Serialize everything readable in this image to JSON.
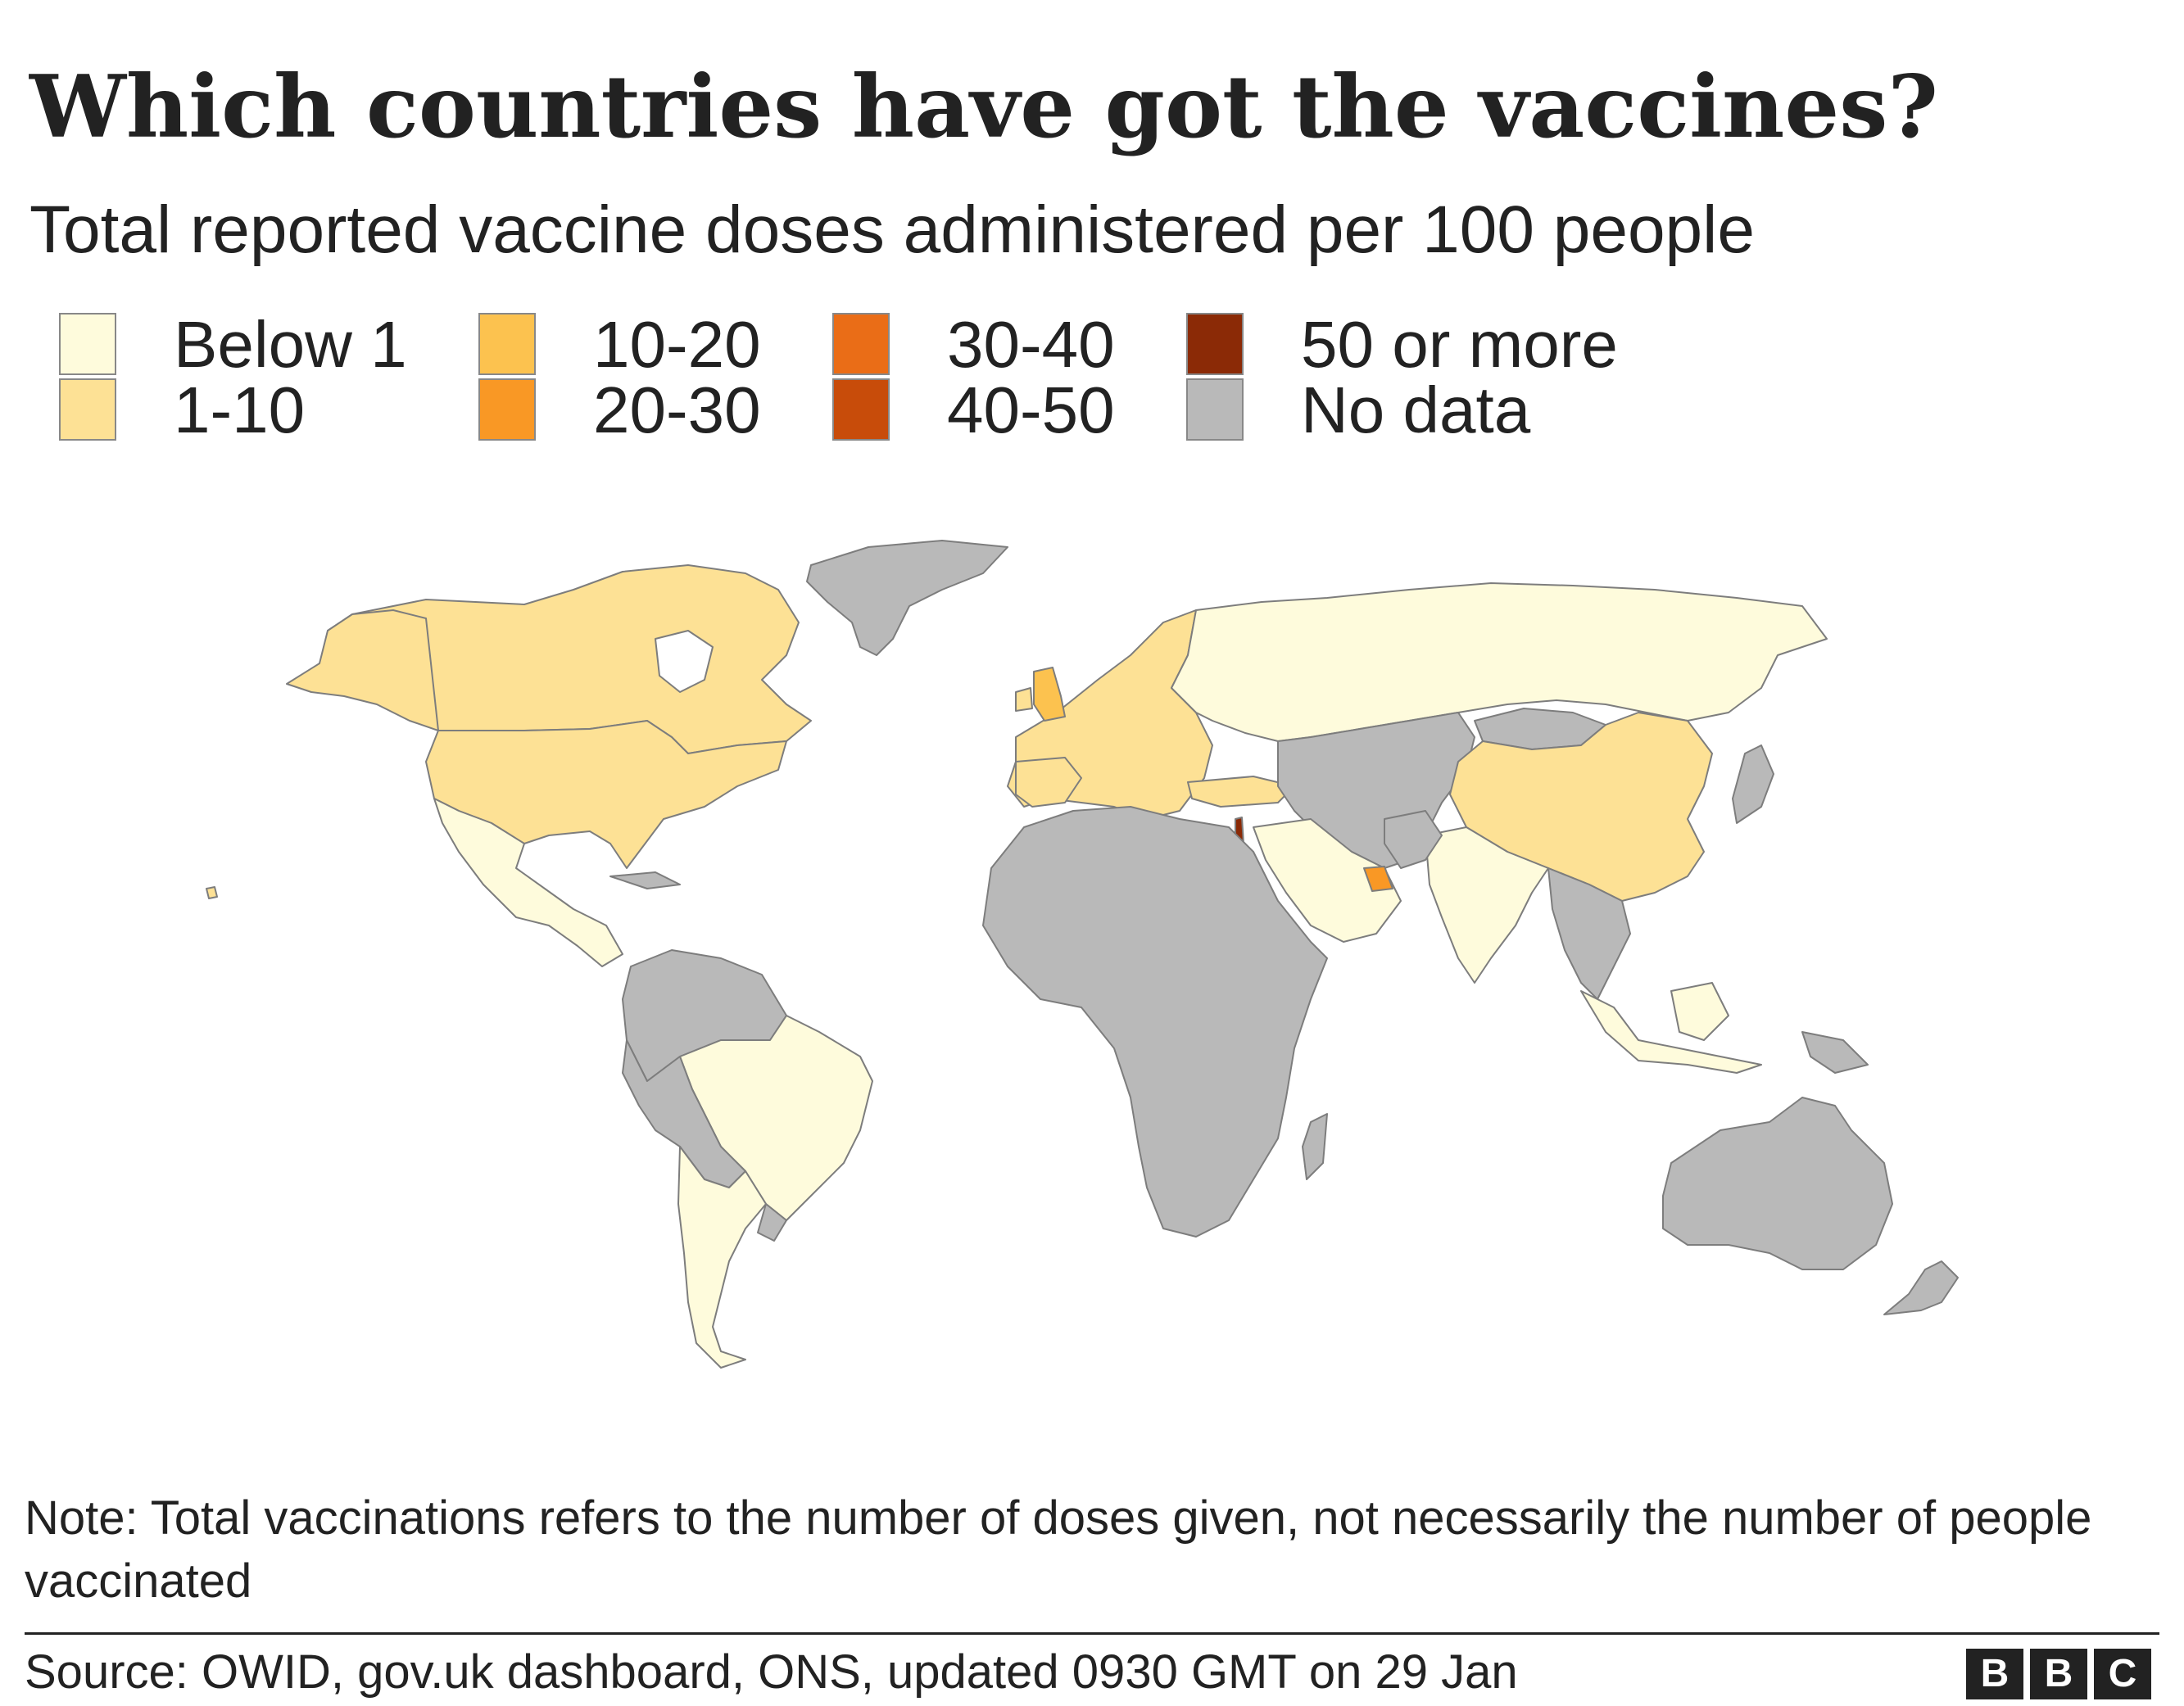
{
  "title": "Which countries have got the vaccines?",
  "subtitle": "Total reported vaccine doses administered per 100 people",
  "legend": [
    {
      "label": "Below 1",
      "color": "#fefbdc"
    },
    {
      "label": "1-10",
      "color": "#fde195"
    },
    {
      "label": "10-20",
      "color": "#fcc24f"
    },
    {
      "label": "20-30",
      "color": "#f99825"
    },
    {
      "label": "30-40",
      "color": "#ea6d17"
    },
    {
      "label": "40-50",
      "color": "#c84c0a"
    },
    {
      "label": "50 or more",
      "color": "#8b2a06"
    },
    {
      "label": "No data",
      "color": "#b9b9b9"
    }
  ],
  "map_data": {
    "metric": "Total reported vaccine doses administered per 100 people",
    "countries": [
      {
        "name": "Canada",
        "bin": "1-10"
      },
      {
        "name": "United States",
        "bin": "1-10"
      },
      {
        "name": "Mexico",
        "bin": "Below 1"
      },
      {
        "name": "Brazil",
        "bin": "Below 1"
      },
      {
        "name": "Argentina",
        "bin": "Below 1"
      },
      {
        "name": "Chile",
        "bin": "Below 1"
      },
      {
        "name": "United Kingdom",
        "bin": "10-20"
      },
      {
        "name": "Europe (most countries)",
        "bin": "1-10"
      },
      {
        "name": "Russia",
        "bin": "Below 1"
      },
      {
        "name": "Turkey",
        "bin": "1-10"
      },
      {
        "name": "China",
        "bin": "1-10"
      },
      {
        "name": "India",
        "bin": "Below 1"
      },
      {
        "name": "Saudi Arabia",
        "bin": "Below 1"
      },
      {
        "name": "United Arab Emirates",
        "bin": "20-30"
      },
      {
        "name": "Israel",
        "bin": "50 or more"
      },
      {
        "name": "Indonesia",
        "bin": "Below 1"
      },
      {
        "name": "Africa (most countries)",
        "bin": "No data"
      },
      {
        "name": "Australia",
        "bin": "No data"
      },
      {
        "name": "Greenland",
        "bin": "No data"
      }
    ]
  },
  "note": "Note: Total vaccinations refers to the number of doses given, not necessarily the number of people vaccinated",
  "source": "Source: OWID, gov.uk dashboard, ONS, updated 0930 GMT on 29 Jan",
  "logo": [
    "B",
    "B",
    "C"
  ]
}
